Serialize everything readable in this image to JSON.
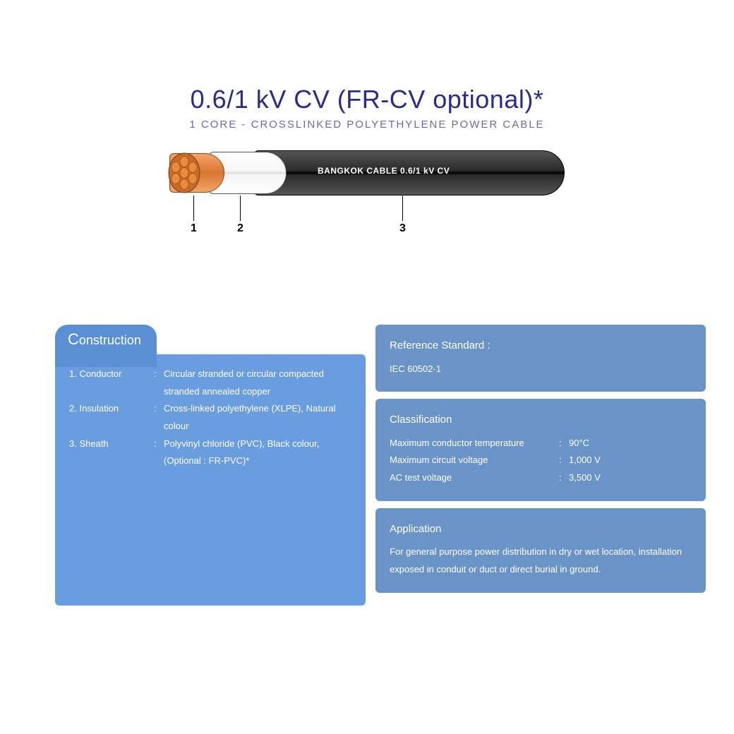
{
  "colors": {
    "title": "#2a2a8f",
    "subtitle": "#6a6aa8",
    "tab_bg": "#5a8fd4",
    "card_left_bg": "#6a9de0",
    "card_right_bg": "#6a94c8",
    "text_white": "#ffffff",
    "leader_num": "#000000"
  },
  "header": {
    "title": "0.6/1 kV CV (FR-CV optional)*",
    "subtitle": "1 CORE - CROSSLINKED POLYETHYLENE POWER CABLE"
  },
  "diagram": {
    "sheath_label": "BANGKOK CABLE 0.6/1 kV CV",
    "callouts": [
      "1",
      "2",
      "3"
    ]
  },
  "construction": {
    "tab": "Construction",
    "items": [
      {
        "num": "1.",
        "label": "Conductor",
        "value": "Circular stranded or circular compacted stranded annealed copper"
      },
      {
        "num": "2.",
        "label": "Insulation",
        "value": "Cross-linked polyethylene (XLPE), Natural colour"
      },
      {
        "num": "3.",
        "label": "Sheath",
        "value": "Polyvinyl chloride (PVC), Black colour, (Optional : FR-PVC)*"
      }
    ]
  },
  "reference": {
    "heading": "Reference Standard :",
    "value": "IEC 60502-1"
  },
  "classification": {
    "heading": "Classification",
    "rows": [
      {
        "label": "Maximum conductor temperature",
        "value": "90°C"
      },
      {
        "label": "Maximum circuit voltage",
        "value": "1,000 V"
      },
      {
        "label": "AC test voltage",
        "value": "3,500 V"
      }
    ]
  },
  "application": {
    "heading": "Application",
    "text": "For general purpose power distribution in dry or wet location, installation exposed in conduit or duct or direct burial in ground."
  }
}
